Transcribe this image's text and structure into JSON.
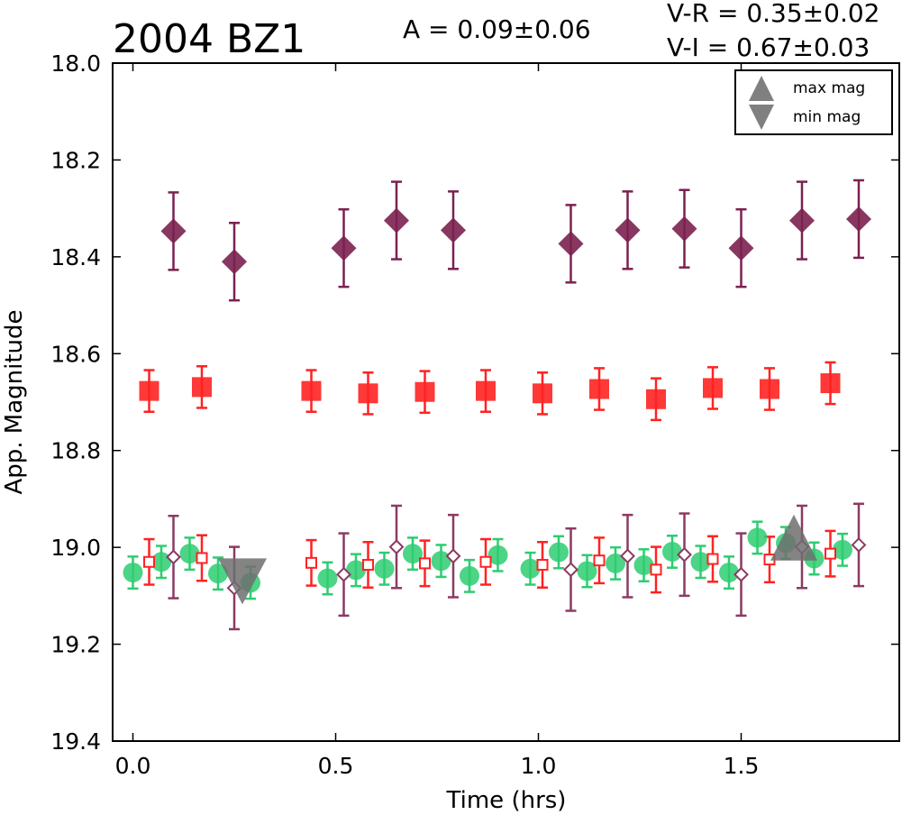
{
  "header": {
    "title": "2004 BZ1",
    "amplitude": "A  = 0.09±0.06",
    "v_r": "V-R = 0.35±0.02",
    "v_i": "V-I  = 0.67±0.03"
  },
  "legend": {
    "placement": "top-right",
    "entries": [
      {
        "label": "max mag",
        "marker": "triangle-up",
        "color": "#808080"
      },
      {
        "label": "min mag",
        "marker": "triangle-down",
        "color": "#808080"
      }
    ]
  },
  "colors": {
    "green": "#2ecc71",
    "red": "#ff2222",
    "purple": "#7b2150",
    "purple_light": "#8b3a62",
    "gray": "#6e6e6e"
  },
  "chart_data": {
    "type": "scatter",
    "xlabel": "Time (hrs)",
    "ylabel": "App. Magnitude",
    "xlim": [
      -0.05,
      1.89
    ],
    "ylim": [
      19.4,
      18.0
    ],
    "y_inverted": true,
    "xticks": [
      0.0,
      0.5,
      1.0,
      1.5
    ],
    "xtick_labels": [
      "0.0",
      "0.5",
      "1.0",
      "1.5"
    ],
    "yticks": [
      18.0,
      18.2,
      18.4,
      18.6,
      18.8,
      19.0,
      19.2,
      19.4
    ],
    "ytick_labels": [
      "18.0",
      "18.2",
      "18.4",
      "18.6",
      "18.8",
      "19.0",
      "19.2",
      "19.4"
    ],
    "grid": false,
    "series": [
      {
        "marker": "diamond-filled",
        "color": "#7b2150",
        "x": [
          0.1,
          0.25,
          0.52,
          0.65,
          0.79,
          1.08,
          1.22,
          1.36,
          1.5,
          1.65,
          1.79
        ],
        "y": [
          18.347,
          18.41,
          18.382,
          18.325,
          18.345,
          18.373,
          18.345,
          18.342,
          18.382,
          18.325,
          18.322
        ],
        "err": [
          0.08,
          0.08,
          0.08,
          0.08,
          0.08,
          0.08,
          0.08,
          0.08,
          0.08,
          0.08,
          0.08
        ]
      },
      {
        "marker": "square-filled",
        "color": "#ff2222",
        "x": [
          0.04,
          0.17,
          0.44,
          0.58,
          0.72,
          0.87,
          1.01,
          1.15,
          1.29,
          1.43,
          1.57,
          1.72
        ],
        "y": [
          18.677,
          18.669,
          18.677,
          18.682,
          18.679,
          18.677,
          18.682,
          18.673,
          18.694,
          18.671,
          18.673,
          18.661
        ],
        "err": [
          0.043,
          0.043,
          0.043,
          0.043,
          0.043,
          0.043,
          0.043,
          0.043,
          0.043,
          0.043,
          0.043,
          0.043
        ]
      },
      {
        "marker": "circle-filled",
        "color": "#2ecc71",
        "x": [
          0.0,
          0.07,
          0.14,
          0.21,
          0.29,
          0.48,
          0.55,
          0.62,
          0.69,
          0.76,
          0.83,
          0.9,
          0.98,
          1.05,
          1.12,
          1.19,
          1.26,
          1.33,
          1.4,
          1.47,
          1.54,
          1.61,
          1.68,
          1.75
        ],
        "y": [
          19.052,
          19.03,
          19.013,
          19.054,
          19.073,
          19.064,
          19.047,
          19.044,
          19.013,
          19.028,
          19.059,
          19.016,
          19.044,
          19.01,
          19.049,
          19.033,
          19.037,
          19.009,
          19.03,
          19.052,
          18.98,
          18.991,
          19.023,
          19.005
        ],
        "err": [
          0.033,
          0.033,
          0.033,
          0.033,
          0.033,
          0.033,
          0.033,
          0.033,
          0.033,
          0.033,
          0.033,
          0.033,
          0.033,
          0.033,
          0.033,
          0.033,
          0.033,
          0.033,
          0.033,
          0.033,
          0.033,
          0.033,
          0.033,
          0.033
        ]
      },
      {
        "marker": "square-open",
        "color": "#ff2222",
        "x": [
          0.04,
          0.17,
          0.44,
          0.58,
          0.72,
          0.87,
          1.01,
          1.15,
          1.29,
          1.43,
          1.57,
          1.72
        ],
        "y": [
          19.03,
          19.022,
          19.032,
          19.036,
          19.033,
          19.03,
          19.036,
          19.027,
          19.046,
          19.024,
          19.025,
          19.013
        ],
        "err": [
          0.047,
          0.047,
          0.047,
          0.047,
          0.047,
          0.047,
          0.047,
          0.047,
          0.047,
          0.047,
          0.047,
          0.047
        ]
      },
      {
        "marker": "diamond-open",
        "color": "#8b3a62",
        "x": [
          0.1,
          0.25,
          0.52,
          0.65,
          0.79,
          1.08,
          1.22,
          1.36,
          1.5,
          1.65,
          1.79
        ],
        "y": [
          19.02,
          19.084,
          19.056,
          18.999,
          19.018,
          19.046,
          19.018,
          19.015,
          19.056,
          18.999,
          18.995
        ],
        "err": [
          0.085,
          0.085,
          0.085,
          0.085,
          0.085,
          0.085,
          0.085,
          0.085,
          0.085,
          0.085,
          0.085
        ]
      },
      {
        "marker": "triangle-down",
        "color": "#6e6e6e",
        "label": "min mag",
        "x": [
          0.27
        ],
        "y": [
          19.06
        ]
      },
      {
        "marker": "triangle-up",
        "color": "#6e6e6e",
        "label": "max mag",
        "x": [
          1.63
        ],
        "y": [
          18.99
        ]
      }
    ]
  }
}
